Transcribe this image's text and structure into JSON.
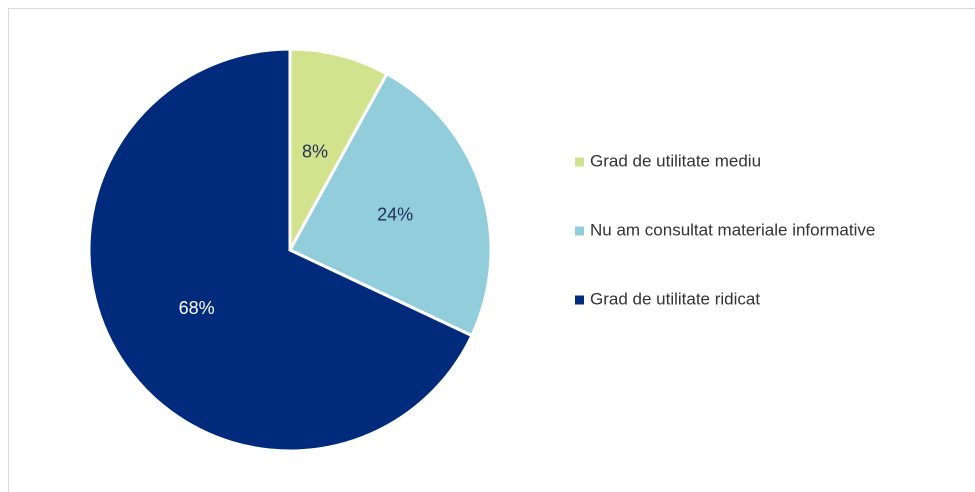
{
  "chart_data": {
    "type": "pie",
    "categories": [
      "Grad de utilitate mediu",
      "Nu am consultat materiale informative",
      "Grad de utilitate ridicat"
    ],
    "values": [
      8,
      24,
      68
    ],
    "value_labels": [
      "8%",
      "24%",
      "68%"
    ],
    "colors": [
      "#d3e28c",
      "#92cddc",
      "#002a7c"
    ],
    "legend": "right"
  }
}
